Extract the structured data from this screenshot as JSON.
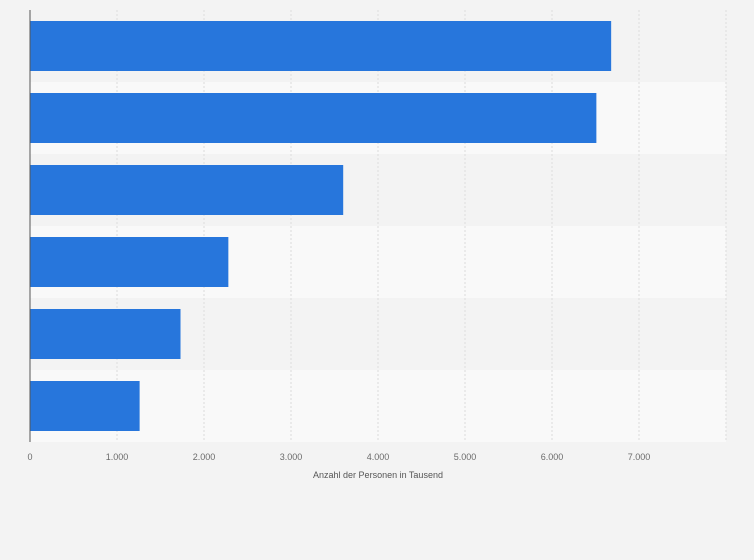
{
  "chart_data": {
    "type": "bar",
    "orientation": "horizontal",
    "categories": [
      "",
      "",
      "",
      "",
      "",
      ""
    ],
    "values": [
      6680,
      6510,
      3600,
      2280,
      1730,
      1260
    ],
    "xlabel": "Anzahl der Personen in Tausend",
    "ylabel": "",
    "xlim": [
      0,
      8000
    ],
    "xticks": [
      0,
      1000,
      2000,
      3000,
      4000,
      5000,
      6000,
      7000
    ],
    "xtick_labels": [
      "0",
      "1.000",
      "2.000",
      "3.000",
      "4.000",
      "5.000",
      "6.000",
      "7.000"
    ],
    "grid": true,
    "legend": "none",
    "colors": {
      "bar": "#2776dc",
      "background": "#f3f3f3",
      "band_light": "#f9f9f9",
      "band_dark": "#f3f3f3",
      "grid": "#dcdcdc",
      "axis": "#555555"
    }
  }
}
